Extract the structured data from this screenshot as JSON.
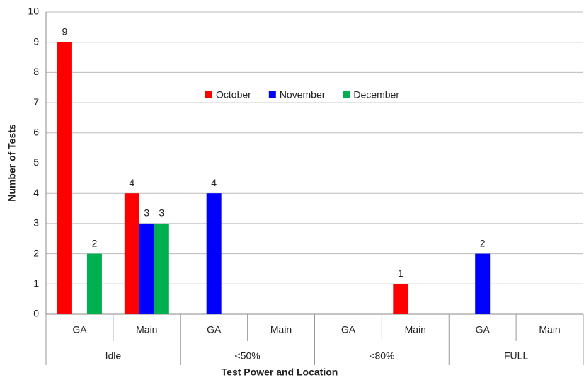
{
  "chart_data": {
    "type": "bar",
    "x_label": "Test Power and Location",
    "y_label": "Number of Tests",
    "categories": [
      "GA",
      "Main",
      "GA",
      "Main",
      "GA",
      "Main",
      "GA",
      "Main"
    ],
    "groups": [
      "Idle",
      "<50%",
      "<80%",
      "FULL"
    ],
    "series": [
      {
        "name": "October",
        "color": "#ff0000",
        "values": [
          9,
          4,
          null,
          null,
          null,
          1,
          null,
          null
        ]
      },
      {
        "name": "November",
        "color": "#0000ff",
        "values": [
          null,
          3,
          4,
          null,
          null,
          null,
          2,
          null
        ]
      },
      {
        "name": "December",
        "color": "#00b050",
        "values": [
          2,
          3,
          null,
          null,
          null,
          null,
          null,
          null
        ]
      }
    ],
    "ylim": [
      0,
      10
    ],
    "yticks": [
      0,
      1,
      2,
      3,
      4,
      5,
      6,
      7,
      8,
      9,
      10
    ],
    "grid": true,
    "legend": "top"
  }
}
